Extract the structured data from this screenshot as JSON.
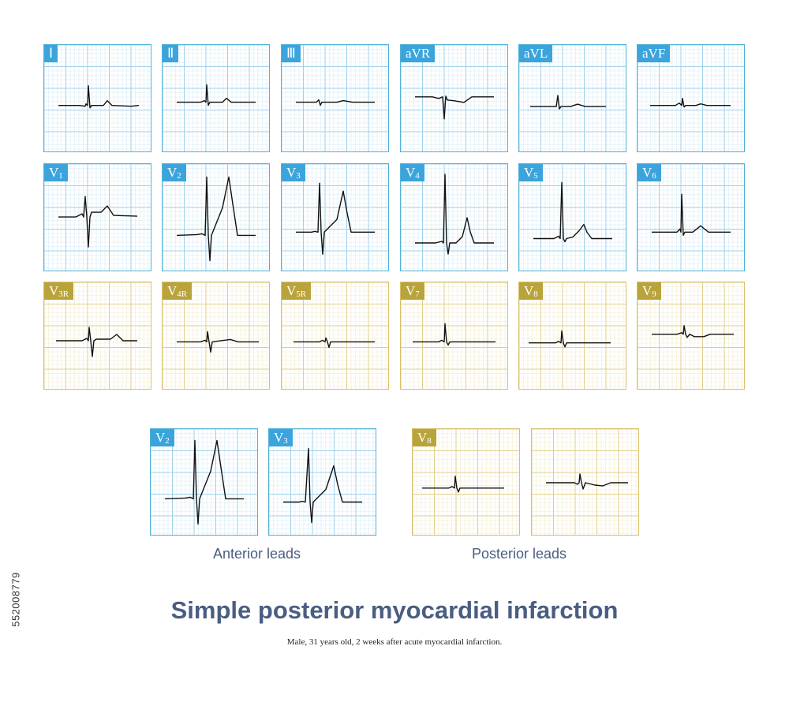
{
  "colors": {
    "blue_border": "#4fb2d8",
    "blue_label": "#3ba4dc",
    "blue_grid_minor": "#d7ecf6",
    "blue_grid_major": "#9fd0ea",
    "gold_border": "#d8c06c",
    "gold_label": "#b9a33b",
    "gold_grid_minor": "#f2ebcf",
    "gold_grid_major": "#e2cf8c",
    "trace": "#111111",
    "heading": "#4a5d82"
  },
  "leads": [
    {
      "label": "Ⅰ",
      "sub": "",
      "theme": "blue",
      "waveform": "lead-I"
    },
    {
      "label": "Ⅱ",
      "sub": "",
      "theme": "blue",
      "waveform": "lead-II"
    },
    {
      "label": "Ⅲ",
      "sub": "",
      "theme": "blue",
      "waveform": "lead-III"
    },
    {
      "label": "aVR",
      "sub": "",
      "theme": "blue",
      "waveform": "lead-aVR"
    },
    {
      "label": "aVL",
      "sub": "",
      "theme": "blue",
      "waveform": "lead-aVL"
    },
    {
      "label": "aVF",
      "sub": "",
      "theme": "blue",
      "waveform": "lead-aVF"
    },
    {
      "label": "V",
      "sub": "1",
      "theme": "blue",
      "waveform": "lead-V1"
    },
    {
      "label": "V",
      "sub": "2",
      "theme": "blue",
      "waveform": "lead-V2"
    },
    {
      "label": "V",
      "sub": "3",
      "theme": "blue",
      "waveform": "lead-V3"
    },
    {
      "label": "V",
      "sub": "4",
      "theme": "blue",
      "waveform": "lead-V4"
    },
    {
      "label": "V",
      "sub": "5",
      "theme": "blue",
      "waveform": "lead-V5"
    },
    {
      "label": "V",
      "sub": "6",
      "theme": "blue",
      "waveform": "lead-V6"
    },
    {
      "label": "V",
      "sub": "3R",
      "theme": "gold",
      "waveform": "lead-V3R"
    },
    {
      "label": "V",
      "sub": "4R",
      "theme": "gold",
      "waveform": "lead-V4R"
    },
    {
      "label": "V",
      "sub": "5R",
      "theme": "gold",
      "waveform": "lead-V5R"
    },
    {
      "label": "V",
      "sub": "7",
      "theme": "gold",
      "waveform": "lead-V7"
    },
    {
      "label": "V",
      "sub": "8",
      "theme": "gold",
      "waveform": "lead-V8"
    },
    {
      "label": "V",
      "sub": "9",
      "theme": "gold",
      "waveform": "lead-V9"
    }
  ],
  "comparison": [
    {
      "label": "V",
      "sub": "2",
      "theme": "blue",
      "waveform": "cmp-V2"
    },
    {
      "label": "V",
      "sub": "3",
      "theme": "blue",
      "waveform": "cmp-V3"
    },
    {
      "label": "V",
      "sub": "8",
      "theme": "gold",
      "waveform": "cmp-V8"
    },
    {
      "label": "",
      "sub": "",
      "theme": "gold",
      "waveform": "cmp-V8-mirror"
    }
  ],
  "anterior_label": "Anterior leads",
  "posterior_label": "Posterior leads",
  "title": "Simple posterior myocardial infarction",
  "subtitle": "Male, 31 years old, 2 weeks after acute myocardial infarction.",
  "stock_id": "552008779"
}
